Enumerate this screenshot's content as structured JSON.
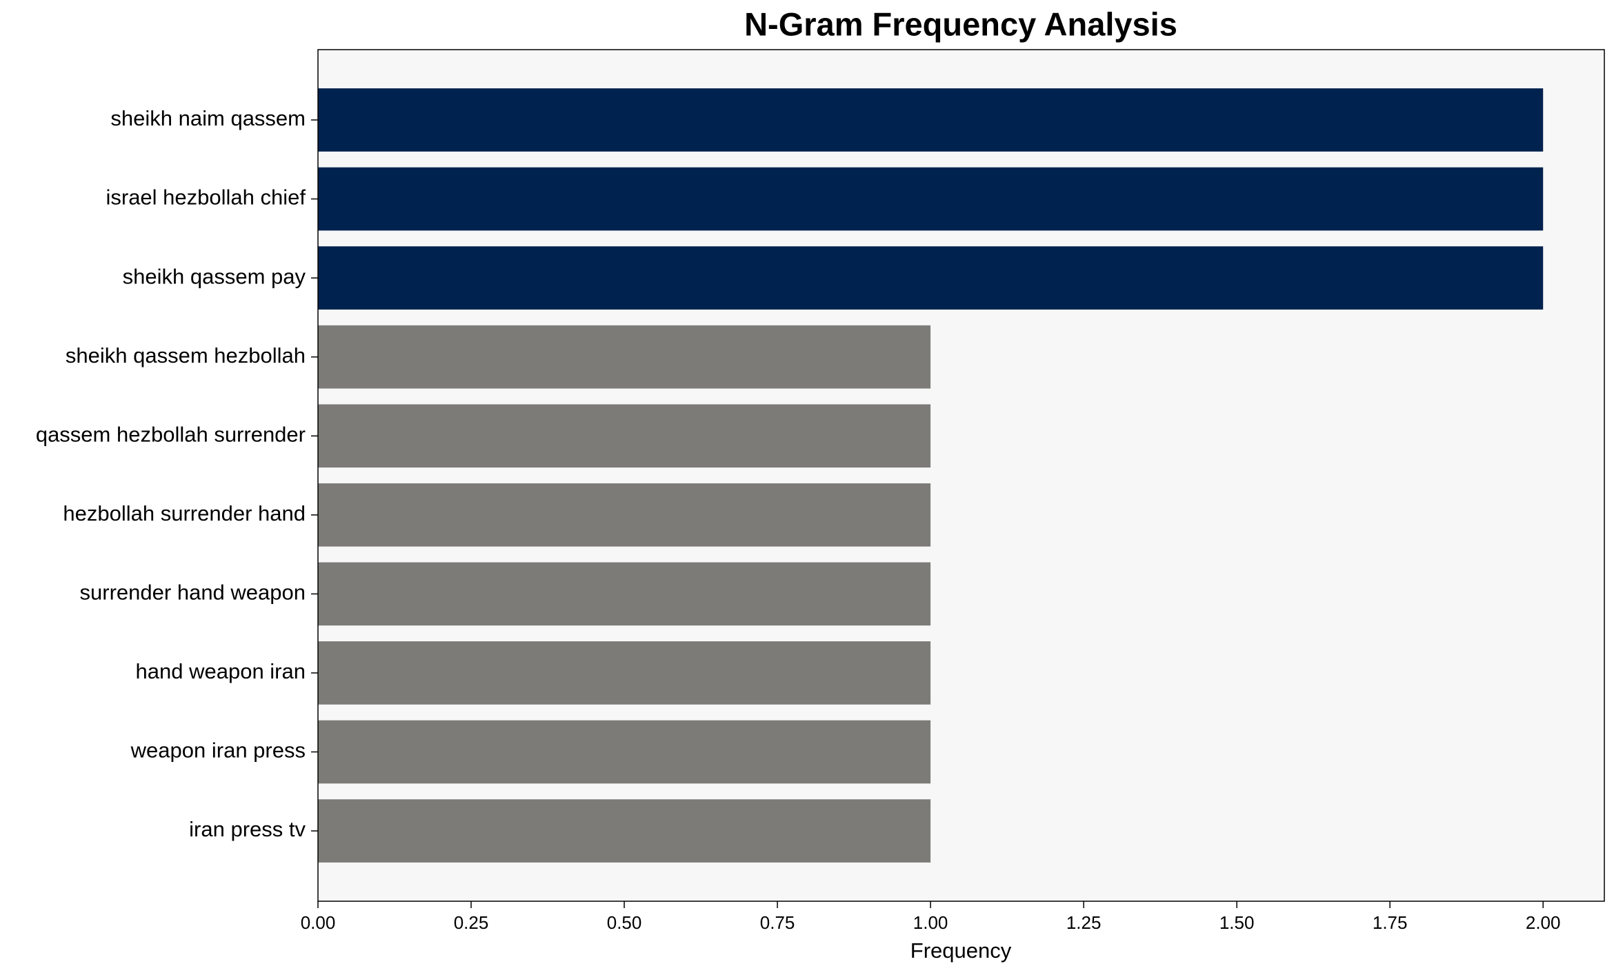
{
  "chart_data": {
    "type": "barh",
    "title": "N-Gram Frequency Analysis",
    "xlabel": "Frequency",
    "categories": [
      "sheikh naim qassem",
      "israel hezbollah chief",
      "sheikh qassem pay",
      "sheikh qassem hezbollah",
      "qassem hezbollah surrender",
      "hezbollah surrender hand",
      "surrender hand weapon",
      "hand weapon iran",
      "weapon iran press",
      "iran press tv"
    ],
    "values": [
      2,
      2,
      2,
      1,
      1,
      1,
      1,
      1,
      1,
      1
    ],
    "colors": [
      "#00224e",
      "#00224e",
      "#00224e",
      "#7c7b78",
      "#7c7b78",
      "#7c7b78",
      "#7c7b78",
      "#7c7b78",
      "#7c7b78",
      "#7c7b78"
    ],
    "xlim": [
      0,
      2.1
    ],
    "xticks": [
      {
        "value": 0,
        "label": "0.00"
      },
      {
        "value": 0.25,
        "label": "0.25"
      },
      {
        "value": 0.5,
        "label": "0.50"
      },
      {
        "value": 0.75,
        "label": "0.75"
      },
      {
        "value": 1,
        "label": "1.00"
      },
      {
        "value": 1.25,
        "label": "1.25"
      },
      {
        "value": 1.5,
        "label": "1.50"
      },
      {
        "value": 1.75,
        "label": "1.75"
      },
      {
        "value": 2,
        "label": "2.00"
      }
    ]
  }
}
